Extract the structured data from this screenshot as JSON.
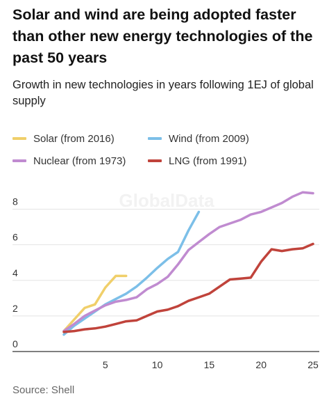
{
  "title": "Solar and wind are being adopted faster than other new energy technologies of the past 50 years",
  "subtitle": "Growth in new technologies in years following 1EJ of global supply",
  "source": "Source: Shell",
  "watermark": "GlobalData",
  "chart_data": {
    "type": "line",
    "title": "Solar and wind are being adopted faster than other new energy technologies of the past 50 years",
    "subtitle": "Growth in new technologies in years following 1EJ of global supply",
    "xlabel": "",
    "ylabel": "",
    "xlim": [
      0,
      25
    ],
    "ylim": [
      0,
      9
    ],
    "x_ticks": [
      5,
      10,
      15,
      20,
      25
    ],
    "y_ticks": [
      0,
      2,
      4,
      6,
      8
    ],
    "grid": "horizontal",
    "legend_position": "top-left",
    "series": [
      {
        "name": "Solar (from 2016)",
        "color": "#f0cf6a",
        "x": [
          1,
          2,
          3,
          4,
          5,
          6,
          7
        ],
        "y": [
          1.15,
          1.8,
          2.45,
          2.65,
          3.6,
          4.25,
          4.25
        ]
      },
      {
        "name": "Wind (from 2009)",
        "color": "#7cbfe8",
        "x": [
          1,
          2,
          3,
          4,
          5,
          6,
          7,
          8,
          9,
          10,
          11,
          12,
          13,
          14
        ],
        "y": [
          0.95,
          1.45,
          1.85,
          2.25,
          2.65,
          2.95,
          3.25,
          3.65,
          4.15,
          4.7,
          5.2,
          5.6,
          6.8,
          7.85
        ]
      },
      {
        "name": "Nuclear (from 1973)",
        "color": "#c08bd0",
        "x": [
          1,
          2,
          3,
          4,
          5,
          6,
          7,
          8,
          9,
          10,
          11,
          12,
          13,
          14,
          15,
          16,
          17,
          18,
          19,
          20,
          21,
          22,
          23,
          24,
          25
        ],
        "y": [
          1.15,
          1.55,
          2.0,
          2.3,
          2.6,
          2.8,
          2.9,
          3.05,
          3.5,
          3.8,
          4.2,
          4.9,
          5.7,
          6.15,
          6.6,
          7.0,
          7.2,
          7.4,
          7.7,
          7.85,
          8.1,
          8.35,
          8.7,
          8.95,
          8.9
        ]
      },
      {
        "name": "LNG (from 1991)",
        "color": "#c0433b",
        "x": [
          1,
          2,
          3,
          4,
          5,
          6,
          7,
          8,
          9,
          10,
          11,
          12,
          13,
          14,
          15,
          16,
          17,
          18,
          19,
          20,
          21,
          22,
          23,
          24,
          25
        ],
        "y": [
          1.1,
          1.15,
          1.25,
          1.3,
          1.4,
          1.55,
          1.7,
          1.75,
          2.0,
          2.25,
          2.35,
          2.55,
          2.85,
          3.05,
          3.25,
          3.65,
          4.05,
          4.1,
          4.15,
          5.05,
          5.75,
          5.65,
          5.75,
          5.8,
          6.05
        ]
      }
    ]
  }
}
